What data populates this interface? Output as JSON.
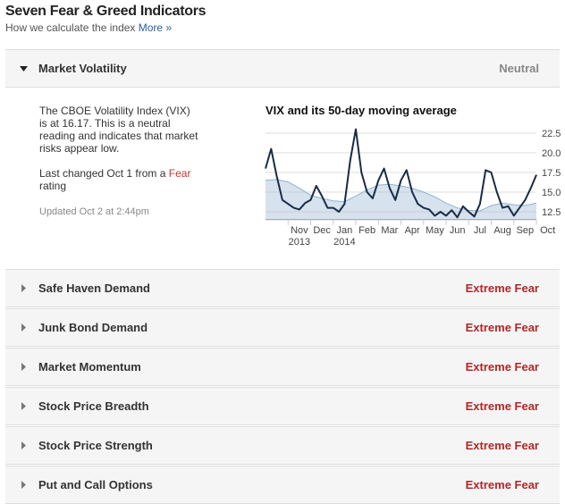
{
  "header": {
    "title": "Seven Fear & Greed Indicators",
    "subtitle": "How we calculate the index",
    "link": "More »"
  },
  "indicators": [
    {
      "name": "Market Volatility",
      "rating": "Neutral",
      "expanded": true
    },
    {
      "name": "Safe Haven Demand",
      "rating": "Extreme Fear"
    },
    {
      "name": "Junk Bond Demand",
      "rating": "Extreme Fear"
    },
    {
      "name": "Market Momentum",
      "rating": "Extreme Fear"
    },
    {
      "name": "Stock Price Breadth",
      "rating": "Extreme Fear"
    },
    {
      "name": "Stock Price Strength",
      "rating": "Extreme Fear"
    },
    {
      "name": "Put and Call Options",
      "rating": "Extreme Fear"
    }
  ],
  "detail": {
    "description": "The CBOE Volatility Index (VIX) is at 16.17. This is a neutral reading and indicates that market risks appear low.",
    "changed_text": "Last changed Oct 1 from a",
    "changed_from": "Fear",
    "changed_suffix": "rating",
    "updated": "Updated Oct 2 at 2:44pm"
  },
  "chart_data": {
    "type": "line",
    "title": "VIX and its 50-day moving average",
    "xlim": [
      0,
      12
    ],
    "ylim": [
      11.5,
      23
    ],
    "yticks": [
      12.5,
      {
        "value": 15,
        "label": "15.0"
      },
      17.5,
      {
        "value": 20,
        "label": "20.0"
      },
      22.5
    ],
    "xticks": [
      {
        "value": 1.5,
        "label": "Nov"
      },
      {
        "value": 2.5,
        "label": "Dec"
      },
      {
        "value": 3.5,
        "label": "Jan"
      },
      {
        "value": 4.5,
        "label": "Feb"
      },
      {
        "value": 5.5,
        "label": "Mar"
      },
      {
        "value": 6.5,
        "label": "Apr"
      },
      {
        "value": 7.5,
        "label": "May"
      },
      {
        "value": 8.5,
        "label": "Jun"
      },
      {
        "value": 9.5,
        "label": "Jul"
      },
      {
        "value": 10.5,
        "label": "Aug"
      },
      {
        "value": 11.5,
        "label": "Sep"
      },
      {
        "value": 12.5,
        "label": "Oct"
      }
    ],
    "xtick_years": [
      {
        "value": 1.5,
        "label": "2013"
      },
      {
        "value": 3.5,
        "label": "2014"
      }
    ],
    "grid": true,
    "series": [
      {
        "name": "50-day moving average",
        "color": "#8fb3d1",
        "fill": "#d6e2ee",
        "area": true,
        "x": [
          0,
          0.5,
          1,
          1.5,
          2,
          2.5,
          3,
          3.5,
          4,
          4.5,
          5,
          5.5,
          6,
          6.5,
          7,
          7.5,
          8,
          8.5,
          9,
          9.5,
          10,
          10.5,
          11,
          11.5,
          12
        ],
        "values": [
          16.5,
          16.6,
          16.3,
          15.5,
          14.6,
          14.2,
          13.9,
          13.8,
          14.5,
          15.3,
          15.9,
          16,
          15.8,
          15.5,
          15,
          14.4,
          13.6,
          13,
          12.7,
          12.6,
          13.3,
          13.6,
          13.4,
          13.3,
          13.6
        ]
      },
      {
        "name": "VIX",
        "color": "#1a2b45",
        "x": [
          0,
          0.25,
          0.5,
          0.75,
          1,
          1.25,
          1.5,
          1.75,
          2,
          2.25,
          2.5,
          2.75,
          3,
          3.25,
          3.5,
          3.75,
          4,
          4.25,
          4.5,
          4.75,
          5,
          5.25,
          5.5,
          5.75,
          6,
          6.25,
          6.5,
          6.75,
          7,
          7.25,
          7.5,
          7.75,
          8,
          8.25,
          8.5,
          8.75,
          9,
          9.25,
          9.5,
          9.75,
          10,
          10.25,
          10.5,
          10.75,
          11,
          11.25,
          11.5,
          11.75,
          12
        ],
        "values": [
          18,
          20.5,
          17,
          14,
          13.5,
          13,
          12.8,
          13.6,
          14,
          15.8,
          14.5,
          13,
          13,
          12.5,
          13.5,
          19,
          23,
          17.5,
          15,
          14.2,
          16.5,
          18,
          15.5,
          14,
          16.5,
          17.8,
          15,
          13.5,
          13,
          12.8,
          12,
          12.5,
          12,
          12.7,
          11.8,
          13.2,
          12.5,
          11.9,
          13.5,
          17.8,
          17.5,
          15,
          13,
          13.2,
          12,
          13,
          14,
          15.5,
          17.2
        ]
      }
    ]
  }
}
